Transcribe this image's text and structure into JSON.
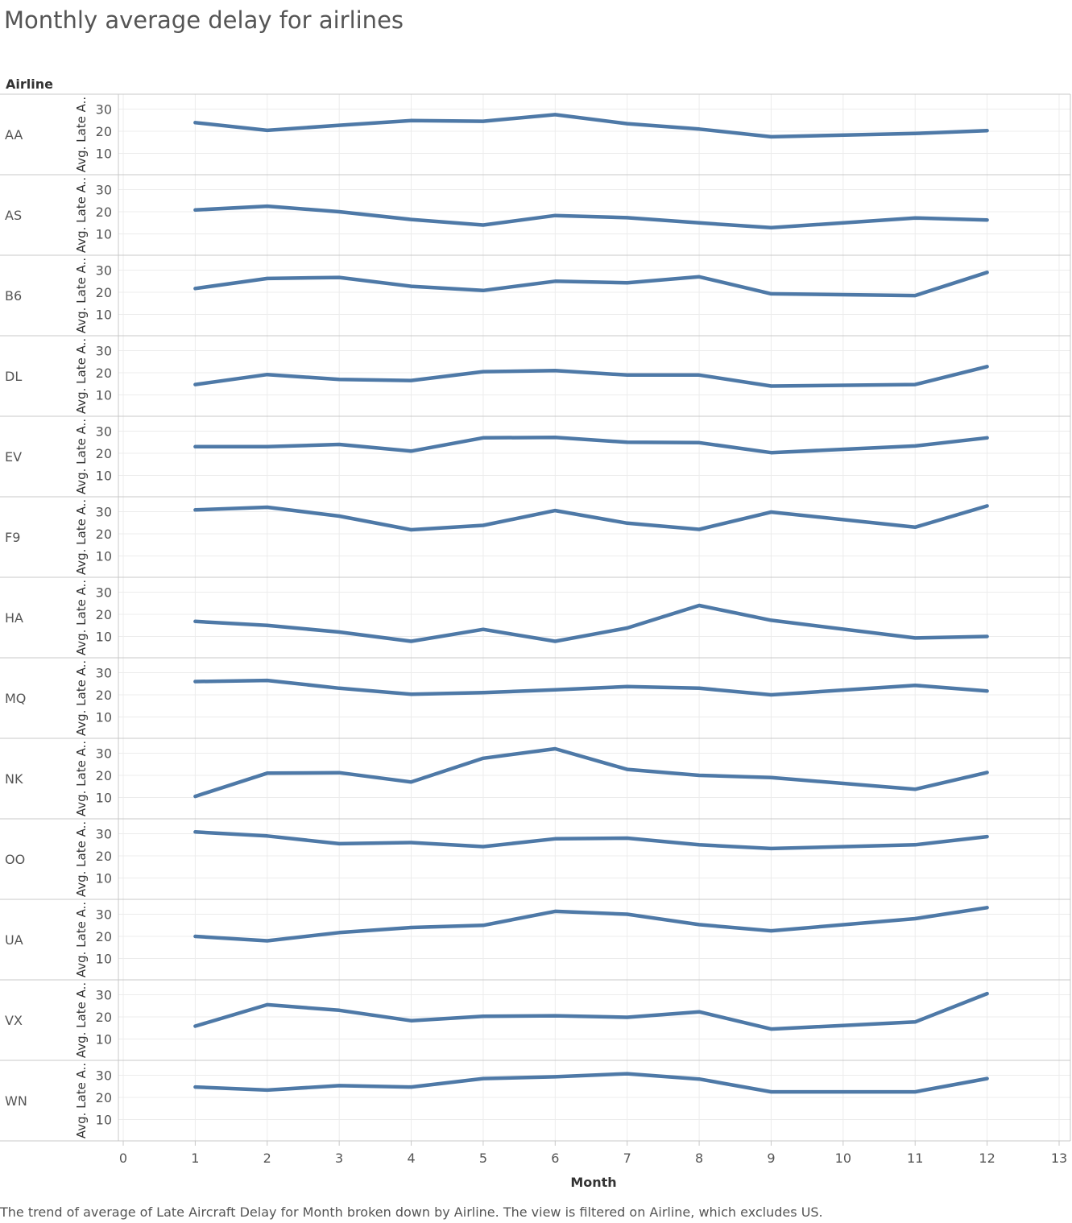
{
  "title": "Monthly average delay for airlines",
  "row_header": "Airline",
  "caption": "The trend of average of Late Aircraft Delay for Month broken down by Airline. The view is filtered on Airline, which excludes US.",
  "colors": {
    "line": "#4e79a7",
    "grid": "#ececec",
    "border": "#c8c8c8",
    "text": "#555555"
  },
  "chart_data": {
    "type": "line",
    "title": "Monthly average delay for airlines",
    "xlabel": "Month",
    "ylabel": "Avg. Late A..",
    "xlim": [
      0,
      13
    ],
    "ylim": [
      0,
      35
    ],
    "x_ticks": [
      0,
      1,
      2,
      3,
      4,
      5,
      6,
      7,
      8,
      9,
      10,
      11,
      12,
      13
    ],
    "y_ticks": [
      10,
      20,
      30
    ],
    "months": [
      1,
      2,
      3,
      4,
      5,
      6,
      7,
      8,
      9,
      11,
      12
    ],
    "series": [
      {
        "name": "AA",
        "values": [
          23.9,
          20.4,
          22.7,
          24.8,
          24.5,
          27.5,
          23.4,
          21.0,
          17.5,
          19.0,
          20.3
        ]
      },
      {
        "name": "AS",
        "values": [
          20.8,
          22.5,
          20.0,
          16.5,
          14.0,
          18.3,
          17.3,
          15.0,
          12.8,
          17.2,
          16.3
        ]
      },
      {
        "name": "B6",
        "values": [
          21.7,
          26.2,
          26.7,
          22.7,
          20.8,
          25.0,
          24.3,
          27.0,
          19.3,
          18.5,
          29.0
        ]
      },
      {
        "name": "DL",
        "values": [
          14.7,
          19.2,
          17.0,
          16.5,
          20.5,
          21.0,
          19.0,
          19.0,
          14.0,
          14.7,
          22.8
        ]
      },
      {
        "name": "EV",
        "values": [
          23.0,
          23.0,
          24.0,
          21.0,
          27.0,
          27.2,
          25.0,
          24.8,
          20.3,
          23.3,
          27.0
        ]
      },
      {
        "name": "F9",
        "values": [
          30.8,
          32.0,
          28.0,
          21.8,
          23.8,
          30.5,
          24.8,
          22.0,
          29.8,
          23.0,
          32.6
        ]
      },
      {
        "name": "HA",
        "values": [
          16.8,
          15.0,
          12.0,
          7.8,
          13.2,
          7.8,
          13.8,
          24.0,
          17.3,
          9.3,
          10.0
        ]
      },
      {
        "name": "MQ",
        "values": [
          26.0,
          26.5,
          23.0,
          20.3,
          21.0,
          22.3,
          23.7,
          23.0,
          20.0,
          24.3,
          21.7
        ]
      },
      {
        "name": "NK",
        "values": [
          10.5,
          21.0,
          21.2,
          17.0,
          27.7,
          32.0,
          22.7,
          20.0,
          19.0,
          13.7,
          21.3
        ]
      },
      {
        "name": "OO",
        "values": [
          30.8,
          29.0,
          25.5,
          26.0,
          24.2,
          27.7,
          28.0,
          25.0,
          23.3,
          25.0,
          28.7
        ]
      },
      {
        "name": "UA",
        "values": [
          20.0,
          18.0,
          21.7,
          24.0,
          25.0,
          31.3,
          30.0,
          25.3,
          22.5,
          28.0,
          33.0
        ]
      },
      {
        "name": "VX",
        "values": [
          15.8,
          25.5,
          23.0,
          18.3,
          20.3,
          20.5,
          19.8,
          22.3,
          14.5,
          17.7,
          30.5
        ]
      },
      {
        "name": "WN",
        "values": [
          24.7,
          23.3,
          25.3,
          24.7,
          28.5,
          29.3,
          30.7,
          28.3,
          22.5,
          22.5,
          28.5
        ]
      }
    ]
  }
}
